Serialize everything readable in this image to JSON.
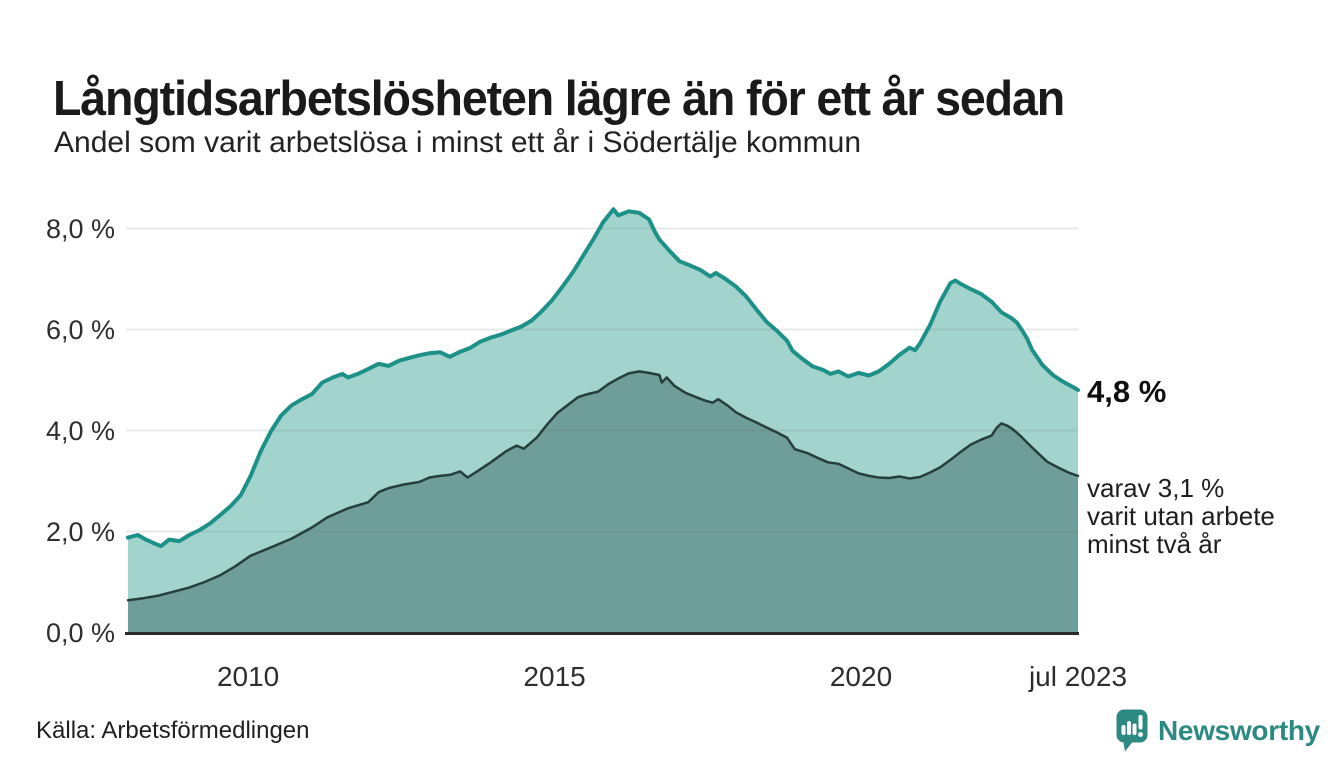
{
  "header": {
    "title": "Långtidsarbetslösheten lägre än för ett år sedan",
    "subtitle": "Andel som varit arbetslösa i minst ett år i Södertälje kommun"
  },
  "chart_data": {
    "type": "area",
    "title": "Långtidsarbetslösheten lägre än för ett år sedan",
    "subtitle": "Andel som varit arbetslösa i minst ett år i Södertälje kommun",
    "unit": "percent",
    "grid": true,
    "legend_position": "right-annotations",
    "x_axis": {
      "range_years": [
        2008.04,
        2023.54
      ],
      "ticks": [
        {
          "label": "2010",
          "year": 2010
        },
        {
          "label": "2015",
          "year": 2015
        },
        {
          "label": "2020",
          "year": 2020
        },
        {
          "label": "jul 2023",
          "year": 2023.54
        }
      ]
    },
    "y_axis": {
      "range": [
        0,
        8.6
      ],
      "ticks": [
        {
          "value": 0,
          "label": "0,0 %"
        },
        {
          "value": 2,
          "label": "2,0 %"
        },
        {
          "value": 4,
          "label": "4,0 %"
        },
        {
          "value": 6,
          "label": "6,0 %"
        },
        {
          "value": 8,
          "label": "8,0 %"
        }
      ]
    },
    "series": [
      {
        "name": "Andel som varit arbetslösa i minst ett år",
        "line_color": "#1d9188",
        "fill_color": "#a2d4cd",
        "line_width": 4,
        "end_value": 4.8,
        "end_value_label": "4,8 %",
        "points": [
          [
            2008.04,
            1.88
          ],
          [
            2008.2,
            1.93
          ],
          [
            2008.33,
            1.84
          ],
          [
            2008.46,
            1.77
          ],
          [
            2008.58,
            1.71
          ],
          [
            2008.71,
            1.84
          ],
          [
            2008.88,
            1.81
          ],
          [
            2009.04,
            1.93
          ],
          [
            2009.21,
            2.03
          ],
          [
            2009.38,
            2.16
          ],
          [
            2009.54,
            2.32
          ],
          [
            2009.71,
            2.5
          ],
          [
            2009.88,
            2.72
          ],
          [
            2010.04,
            3.1
          ],
          [
            2010.21,
            3.6
          ],
          [
            2010.38,
            4.0
          ],
          [
            2010.54,
            4.3
          ],
          [
            2010.71,
            4.5
          ],
          [
            2010.88,
            4.62
          ],
          [
            2011.04,
            4.72
          ],
          [
            2011.21,
            4.95
          ],
          [
            2011.38,
            5.05
          ],
          [
            2011.54,
            5.12
          ],
          [
            2011.63,
            5.05
          ],
          [
            2011.79,
            5.12
          ],
          [
            2011.96,
            5.22
          ],
          [
            2012.13,
            5.32
          ],
          [
            2012.29,
            5.28
          ],
          [
            2012.46,
            5.38
          ],
          [
            2012.63,
            5.44
          ],
          [
            2012.79,
            5.49
          ],
          [
            2012.96,
            5.53
          ],
          [
            2013.13,
            5.55
          ],
          [
            2013.29,
            5.46
          ],
          [
            2013.46,
            5.56
          ],
          [
            2013.63,
            5.64
          ],
          [
            2013.79,
            5.76
          ],
          [
            2013.96,
            5.84
          ],
          [
            2014.13,
            5.9
          ],
          [
            2014.29,
            5.98
          ],
          [
            2014.46,
            6.06
          ],
          [
            2014.63,
            6.18
          ],
          [
            2014.79,
            6.36
          ],
          [
            2014.96,
            6.58
          ],
          [
            2015.13,
            6.85
          ],
          [
            2015.29,
            7.12
          ],
          [
            2015.46,
            7.45
          ],
          [
            2015.63,
            7.78
          ],
          [
            2015.79,
            8.12
          ],
          [
            2015.96,
            8.38
          ],
          [
            2016.04,
            8.26
          ],
          [
            2016.21,
            8.34
          ],
          [
            2016.38,
            8.31
          ],
          [
            2016.54,
            8.18
          ],
          [
            2016.63,
            7.95
          ],
          [
            2016.71,
            7.78
          ],
          [
            2016.88,
            7.55
          ],
          [
            2017.04,
            7.35
          ],
          [
            2017.21,
            7.27
          ],
          [
            2017.38,
            7.18
          ],
          [
            2017.54,
            7.05
          ],
          [
            2017.63,
            7.12
          ],
          [
            2017.79,
            7.0
          ],
          [
            2017.96,
            6.85
          ],
          [
            2018.13,
            6.65
          ],
          [
            2018.29,
            6.4
          ],
          [
            2018.46,
            6.15
          ],
          [
            2018.63,
            5.97
          ],
          [
            2018.79,
            5.78
          ],
          [
            2018.88,
            5.58
          ],
          [
            2019.04,
            5.42
          ],
          [
            2019.21,
            5.27
          ],
          [
            2019.38,
            5.2
          ],
          [
            2019.5,
            5.12
          ],
          [
            2019.63,
            5.17
          ],
          [
            2019.79,
            5.07
          ],
          [
            2019.96,
            5.14
          ],
          [
            2020.13,
            5.09
          ],
          [
            2020.29,
            5.17
          ],
          [
            2020.46,
            5.32
          ],
          [
            2020.63,
            5.5
          ],
          [
            2020.79,
            5.64
          ],
          [
            2020.88,
            5.59
          ],
          [
            2020.96,
            5.72
          ],
          [
            2021.13,
            6.1
          ],
          [
            2021.29,
            6.55
          ],
          [
            2021.46,
            6.92
          ],
          [
            2021.54,
            6.97
          ],
          [
            2021.63,
            6.9
          ],
          [
            2021.79,
            6.8
          ],
          [
            2021.96,
            6.7
          ],
          [
            2022.13,
            6.55
          ],
          [
            2022.29,
            6.34
          ],
          [
            2022.46,
            6.22
          ],
          [
            2022.54,
            6.14
          ],
          [
            2022.63,
            5.98
          ],
          [
            2022.71,
            5.82
          ],
          [
            2022.79,
            5.6
          ],
          [
            2022.96,
            5.3
          ],
          [
            2023.13,
            5.1
          ],
          [
            2023.29,
            4.97
          ],
          [
            2023.46,
            4.86
          ],
          [
            2023.54,
            4.8
          ]
        ]
      },
      {
        "name": "varav varit utan arbete minst två år",
        "line_color": "#263f3c",
        "fill_color": "#6f9d99",
        "line_width": 2.5,
        "end_value": 3.1,
        "end_value_label": "3,1 %",
        "points": [
          [
            2008.04,
            0.64
          ],
          [
            2008.29,
            0.68
          ],
          [
            2008.54,
            0.73
          ],
          [
            2008.79,
            0.81
          ],
          [
            2009.04,
            0.89
          ],
          [
            2009.29,
            1.0
          ],
          [
            2009.54,
            1.13
          ],
          [
            2009.79,
            1.31
          ],
          [
            2010.04,
            1.52
          ],
          [
            2010.38,
            1.69
          ],
          [
            2010.71,
            1.86
          ],
          [
            2011.04,
            2.08
          ],
          [
            2011.29,
            2.28
          ],
          [
            2011.63,
            2.46
          ],
          [
            2011.96,
            2.58
          ],
          [
            2012.13,
            2.78
          ],
          [
            2012.29,
            2.86
          ],
          [
            2012.54,
            2.93
          ],
          [
            2012.79,
            2.98
          ],
          [
            2012.96,
            3.07
          ],
          [
            2013.13,
            3.1
          ],
          [
            2013.29,
            3.12
          ],
          [
            2013.46,
            3.19
          ],
          [
            2013.58,
            3.07
          ],
          [
            2013.71,
            3.17
          ],
          [
            2013.96,
            3.37
          ],
          [
            2014.21,
            3.59
          ],
          [
            2014.38,
            3.7
          ],
          [
            2014.5,
            3.64
          ],
          [
            2014.71,
            3.86
          ],
          [
            2014.88,
            4.12
          ],
          [
            2015.04,
            4.34
          ],
          [
            2015.21,
            4.5
          ],
          [
            2015.38,
            4.66
          ],
          [
            2015.54,
            4.72
          ],
          [
            2015.71,
            4.77
          ],
          [
            2015.88,
            4.92
          ],
          [
            2016.04,
            5.03
          ],
          [
            2016.21,
            5.13
          ],
          [
            2016.38,
            5.17
          ],
          [
            2016.54,
            5.14
          ],
          [
            2016.71,
            5.1
          ],
          [
            2016.75,
            4.95
          ],
          [
            2016.83,
            5.05
          ],
          [
            2016.96,
            4.88
          ],
          [
            2017.13,
            4.75
          ],
          [
            2017.29,
            4.67
          ],
          [
            2017.46,
            4.59
          ],
          [
            2017.58,
            4.55
          ],
          [
            2017.67,
            4.62
          ],
          [
            2017.83,
            4.49
          ],
          [
            2017.96,
            4.36
          ],
          [
            2018.13,
            4.25
          ],
          [
            2018.29,
            4.16
          ],
          [
            2018.46,
            4.06
          ],
          [
            2018.63,
            3.96
          ],
          [
            2018.79,
            3.86
          ],
          [
            2018.92,
            3.63
          ],
          [
            2019.13,
            3.55
          ],
          [
            2019.29,
            3.46
          ],
          [
            2019.46,
            3.37
          ],
          [
            2019.63,
            3.34
          ],
          [
            2019.79,
            3.25
          ],
          [
            2019.96,
            3.15
          ],
          [
            2020.13,
            3.1
          ],
          [
            2020.29,
            3.07
          ],
          [
            2020.46,
            3.06
          ],
          [
            2020.63,
            3.09
          ],
          [
            2020.79,
            3.05
          ],
          [
            2020.96,
            3.08
          ],
          [
            2021.13,
            3.17
          ],
          [
            2021.29,
            3.27
          ],
          [
            2021.46,
            3.42
          ],
          [
            2021.63,
            3.58
          ],
          [
            2021.79,
            3.72
          ],
          [
            2021.96,
            3.82
          ],
          [
            2022.13,
            3.9
          ],
          [
            2022.21,
            4.05
          ],
          [
            2022.29,
            4.14
          ],
          [
            2022.38,
            4.1
          ],
          [
            2022.46,
            4.04
          ],
          [
            2022.54,
            3.96
          ],
          [
            2022.63,
            3.86
          ],
          [
            2022.71,
            3.76
          ],
          [
            2022.88,
            3.56
          ],
          [
            2023.04,
            3.38
          ],
          [
            2023.21,
            3.27
          ],
          [
            2023.38,
            3.17
          ],
          [
            2023.54,
            3.1
          ]
        ]
      }
    ]
  },
  "annotations": {
    "value_label": "4,8 %",
    "sub_lines": [
      "varav 3,1 %",
      "varit utan arbete",
      "minst två år"
    ]
  },
  "footer": {
    "source": "Källa: Arbetsförmedlingen",
    "brand": "Newsworthy"
  },
  "colors": {
    "background": "#ffffff",
    "grid": "#6b7775",
    "grid_opacity": 0.16,
    "axis": "#2b2b2b",
    "brand_teal": "#2d8a82"
  }
}
